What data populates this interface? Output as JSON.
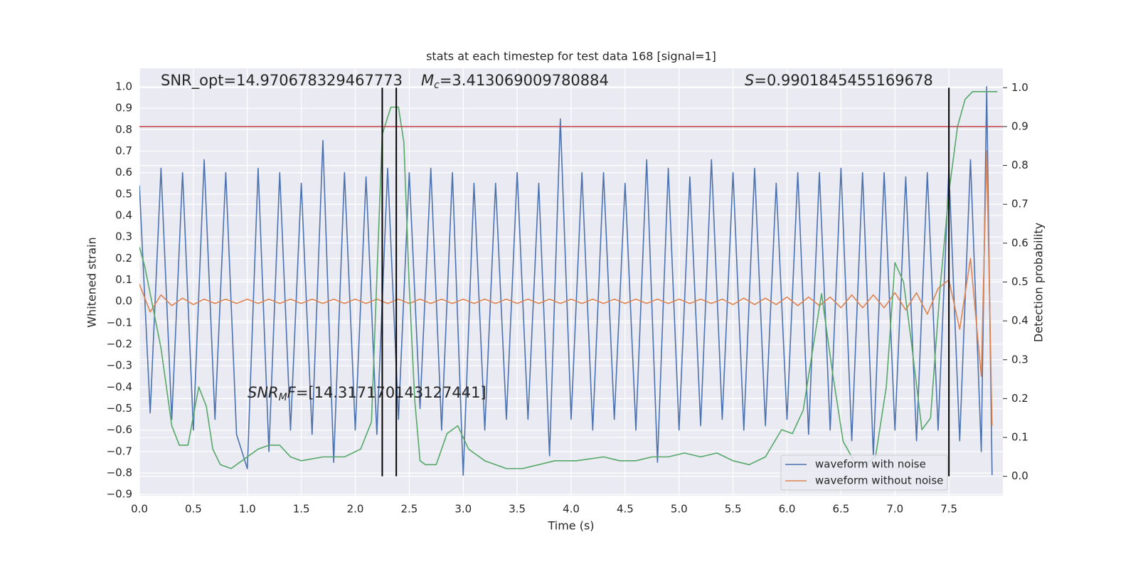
{
  "chart_data": {
    "type": "line",
    "title": "stats at each timestep for test data 168 [signal=1]",
    "xlabel": "Time (s)",
    "ylabel": "Whitened strain",
    "y2label": "Detection probability",
    "xlim": [
      0,
      8.0
    ],
    "ylim": [
      -0.906,
      1.086
    ],
    "y2lim": [
      -0.05,
      1.05
    ],
    "xticks": [
      {
        "value": 0,
        "label": "0.0"
      },
      0.5,
      {
        "value": 1,
        "label": "1.0"
      },
      1.5,
      {
        "value": 2,
        "label": "2.0"
      },
      2.5,
      {
        "value": 3,
        "label": "3.0"
      },
      3.5,
      {
        "value": 4,
        "label": "4.0"
      },
      4.5,
      {
        "value": 5,
        "label": "5.0"
      },
      5.5,
      {
        "value": 6,
        "label": "6.0"
      },
      6.5,
      {
        "value": 7,
        "label": "7.0"
      },
      7.5
    ],
    "yticks": [
      {
        "value": -0.9,
        "label": "−0.9"
      },
      {
        "value": -0.8,
        "label": "−0.8"
      },
      {
        "value": -0.7,
        "label": "−0.7"
      },
      {
        "value": -0.6,
        "label": "−0.6"
      },
      {
        "value": -0.5,
        "label": "−0.5"
      },
      {
        "value": -0.4,
        "label": "−0.4"
      },
      {
        "value": -0.3,
        "label": "−0.3"
      },
      {
        "value": -0.2,
        "label": "−0.2"
      },
      {
        "value": -0.1,
        "label": "−0.1"
      },
      {
        "value": 0,
        "label": "0.0"
      },
      0.1,
      0.2,
      0.3,
      0.4,
      0.5,
      0.6,
      0.7,
      0.8,
      0.9,
      {
        "value": 1,
        "label": "1.0"
      }
    ],
    "y2ticks": [
      {
        "value": 0,
        "label": "0.0"
      },
      0.1,
      0.2,
      0.3,
      0.4,
      0.5,
      0.6,
      0.7,
      0.8,
      0.9,
      {
        "value": 1,
        "label": "1.0"
      }
    ],
    "grid": true,
    "legend": "lower right",
    "series": [
      {
        "name": "waveform with noise",
        "color": "#4c72b0",
        "x": [
          0.0,
          0.1,
          0.2,
          0.3,
          0.4,
          0.5,
          0.6,
          0.7,
          0.8,
          0.9,
          1.0,
          1.1,
          1.2,
          1.3,
          1.4,
          1.5,
          1.6,
          1.7,
          1.8,
          1.9,
          2.0,
          2.1,
          2.2,
          2.3,
          2.4,
          2.5,
          2.6,
          2.7,
          2.8,
          2.9,
          3.0,
          3.1,
          3.2,
          3.3,
          3.4,
          3.5,
          3.6,
          3.7,
          3.8,
          3.9,
          4.0,
          4.1,
          4.2,
          4.3,
          4.4,
          4.5,
          4.6,
          4.7,
          4.8,
          4.9,
          5.0,
          5.1,
          5.2,
          5.3,
          5.4,
          5.5,
          5.6,
          5.7,
          5.8,
          5.9,
          6.0,
          6.1,
          6.2,
          6.3,
          6.4,
          6.5,
          6.6,
          6.7,
          6.8,
          6.9,
          7.0,
          7.1,
          7.2,
          7.3,
          7.4,
          7.5,
          7.6,
          7.7,
          7.8,
          7.85,
          7.9
        ],
        "values": [
          0.54,
          -0.52,
          0.62,
          -0.55,
          0.6,
          -0.6,
          0.66,
          -0.55,
          0.6,
          -0.62,
          -0.78,
          0.62,
          -0.7,
          0.6,
          -0.6,
          0.55,
          -0.62,
          0.75,
          -0.75,
          0.6,
          -0.6,
          0.58,
          -0.62,
          0.62,
          -0.55,
          0.6,
          -0.5,
          0.62,
          -0.6,
          0.6,
          -0.81,
          0.55,
          -0.6,
          0.55,
          -0.55,
          0.6,
          -0.55,
          0.55,
          -0.72,
          0.85,
          -0.55,
          0.6,
          -0.6,
          0.6,
          -0.55,
          0.55,
          -0.6,
          0.66,
          -0.75,
          0.62,
          -0.6,
          0.58,
          -0.58,
          0.66,
          -0.55,
          0.6,
          -0.6,
          0.62,
          -0.58,
          0.55,
          -0.55,
          0.6,
          -0.62,
          0.6,
          -0.6,
          0.62,
          -0.65,
          0.6,
          -0.72,
          0.6,
          -0.6,
          0.58,
          -0.65,
          0.6,
          -0.6,
          0.62,
          -0.65,
          0.66,
          -0.7,
          1.0,
          -0.81
        ]
      },
      {
        "name": "waveform without noise",
        "color": "#dd8452",
        "x": [
          0.0,
          0.1,
          0.2,
          0.3,
          0.4,
          0.5,
          0.6,
          0.7,
          0.8,
          0.9,
          1.0,
          1.1,
          1.2,
          1.3,
          1.4,
          1.5,
          1.6,
          1.7,
          1.8,
          1.9,
          2.0,
          2.1,
          2.2,
          2.3,
          2.4,
          2.5,
          2.6,
          2.7,
          2.8,
          2.9,
          3.0,
          3.1,
          3.2,
          3.3,
          3.4,
          3.5,
          3.6,
          3.7,
          3.8,
          3.9,
          4.0,
          4.1,
          4.2,
          4.3,
          4.4,
          4.5,
          4.6,
          4.7,
          4.8,
          4.9,
          5.0,
          5.1,
          5.2,
          5.3,
          5.4,
          5.5,
          5.6,
          5.7,
          5.8,
          5.9,
          6.0,
          6.1,
          6.2,
          6.3,
          6.4,
          6.5,
          6.6,
          6.7,
          6.8,
          6.9,
          7.0,
          7.1,
          7.2,
          7.3,
          7.4,
          7.5,
          7.6,
          7.7,
          7.8,
          7.85,
          7.9
        ],
        "values": [
          0.08,
          -0.05,
          0.03,
          -0.02,
          0.015,
          -0.015,
          0.01,
          -0.01,
          0.01,
          -0.01,
          0.01,
          -0.01,
          0.01,
          -0.01,
          0.01,
          -0.01,
          0.01,
          -0.01,
          0.01,
          -0.01,
          0.01,
          -0.01,
          0.01,
          -0.01,
          0.01,
          -0.01,
          0.01,
          -0.01,
          0.01,
          -0.01,
          0.01,
          -0.01,
          0.01,
          -0.01,
          0.01,
          -0.01,
          0.01,
          -0.01,
          0.01,
          -0.01,
          0.01,
          -0.01,
          0.01,
          -0.01,
          0.01,
          -0.01,
          0.01,
          -0.01,
          0.01,
          -0.01,
          0.01,
          -0.01,
          0.01,
          -0.01,
          0.01,
          -0.015,
          0.015,
          -0.015,
          0.015,
          -0.015,
          0.02,
          -0.02,
          0.02,
          -0.02,
          0.02,
          -0.03,
          0.03,
          -0.03,
          0.03,
          -0.03,
          0.04,
          -0.04,
          0.04,
          -0.06,
          0.06,
          0.1,
          -0.13,
          0.2,
          -0.35,
          0.7,
          -0.58
        ]
      },
      {
        "color": "#55a868",
        "axis": "y2",
        "x": [
          0.0,
          0.05,
          0.2,
          0.3,
          0.37,
          0.45,
          0.55,
          0.62,
          0.68,
          0.75,
          0.85,
          0.95,
          1.1,
          1.2,
          1.3,
          1.4,
          1.5,
          1.7,
          1.9,
          2.05,
          2.15,
          2.25,
          2.33,
          2.4,
          2.45,
          2.5,
          2.55,
          2.6,
          2.65,
          2.75,
          2.85,
          2.95,
          3.05,
          3.2,
          3.4,
          3.55,
          3.7,
          3.85,
          4.05,
          4.3,
          4.45,
          4.6,
          4.75,
          4.9,
          5.05,
          5.2,
          5.35,
          5.5,
          5.65,
          5.8,
          5.95,
          6.05,
          6.15,
          6.32,
          6.42,
          6.52,
          6.62,
          6.72,
          6.82,
          6.92,
          7.0,
          7.08,
          7.15,
          7.25,
          7.33,
          7.42,
          7.5,
          7.58,
          7.65,
          7.72,
          7.85,
          7.95
        ],
        "values": [
          0.59,
          0.54,
          0.33,
          0.13,
          0.08,
          0.08,
          0.23,
          0.18,
          0.07,
          0.03,
          0.02,
          0.04,
          0.07,
          0.08,
          0.08,
          0.05,
          0.04,
          0.05,
          0.05,
          0.07,
          0.14,
          0.88,
          0.95,
          0.95,
          0.86,
          0.49,
          0.2,
          0.04,
          0.03,
          0.03,
          0.11,
          0.13,
          0.07,
          0.04,
          0.02,
          0.02,
          0.03,
          0.04,
          0.04,
          0.05,
          0.04,
          0.04,
          0.05,
          0.05,
          0.06,
          0.05,
          0.06,
          0.04,
          0.03,
          0.05,
          0.12,
          0.11,
          0.17,
          0.47,
          0.27,
          0.09,
          0.04,
          0.03,
          0.05,
          0.23,
          0.55,
          0.5,
          0.35,
          0.12,
          0.15,
          0.49,
          0.73,
          0.9,
          0.97,
          0.99,
          0.99,
          0.99
        ]
      }
    ],
    "hlines": [
      {
        "y": 0.9,
        "axis": "y2",
        "color": "#c44e52"
      }
    ],
    "vlines": {
      "x": [
        2.25,
        2.38,
        7.5
      ],
      "ymin": 0,
      "ymax": 1,
      "axis": "y2",
      "color": "#000000"
    },
    "annotations": [
      {
        "parts": [
          {
            "text": "SNR_opt=14.970678329467773"
          }
        ]
      },
      {
        "parts": [
          {
            "text": "M",
            "style": "italic"
          },
          {
            "text": "c",
            "style": "sub"
          },
          {
            "text": "=3.413069009780884"
          }
        ]
      },
      {
        "parts": [
          {
            "text": "S",
            "style": "italic"
          },
          {
            "text": "=0.9901845455169678"
          }
        ]
      },
      {
        "parts": [
          {
            "text": "SNR",
            "style": "italic"
          },
          {
            "text": "M",
            "style": "sub"
          },
          {
            "text": "F",
            "style": "italic"
          },
          {
            "text": "=[14.317170143127441]"
          }
        ]
      }
    ]
  }
}
